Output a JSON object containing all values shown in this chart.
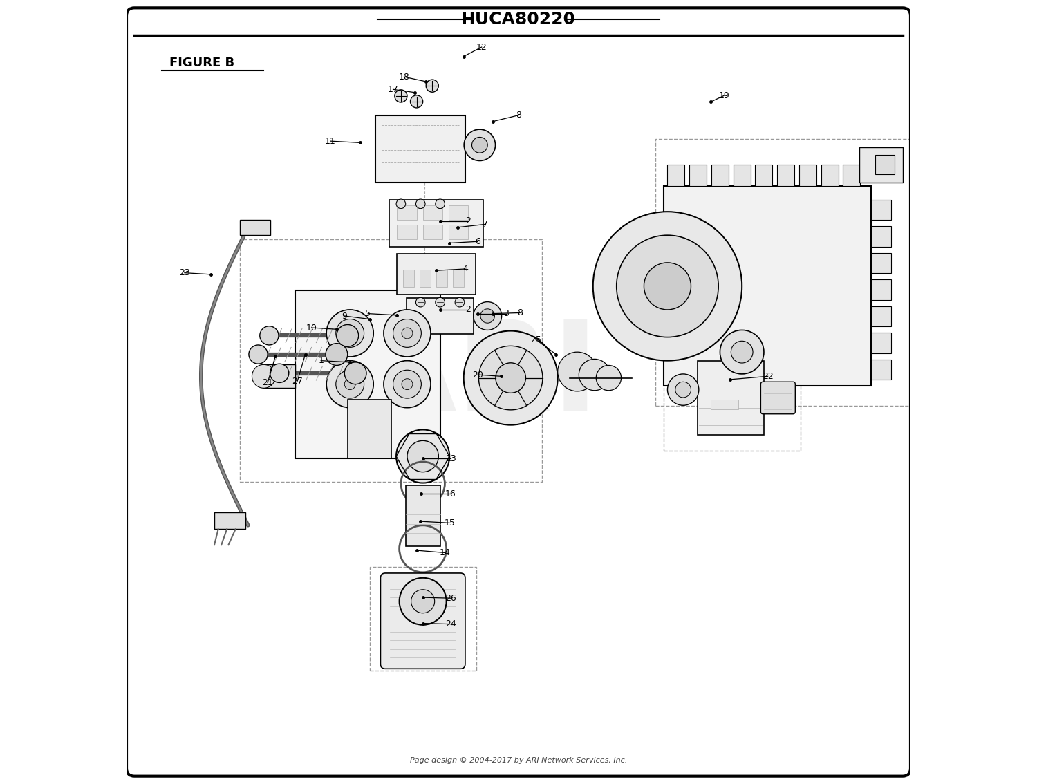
{
  "title": "HUCA80220",
  "figure_label": "FIGURE B",
  "footer": "Page design © 2004-2017 by ARI Network Services, Inc.",
  "bg_color": "#ffffff",
  "border_color": "#000000",
  "line_color": "#000000",
  "text_color": "#000000",
  "dashed_color": "#888888",
  "watermark_color": "#d0d0d0"
}
